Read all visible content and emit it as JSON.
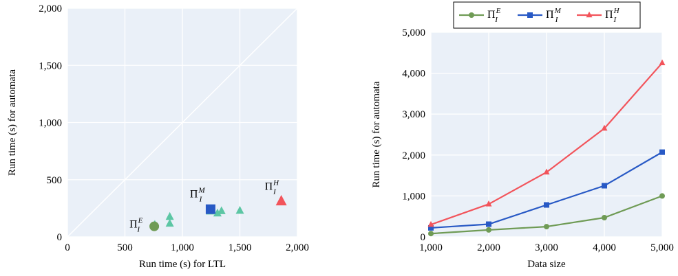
{
  "chart_data": [
    {
      "type": "scatter",
      "xlabel": "Run time (s) for LTL",
      "ylabel": "Run time (s) for automata",
      "xlim": [
        0,
        2000
      ],
      "ylim": [
        0,
        2000
      ],
      "xticks": [
        "0",
        "500",
        "1,000",
        "1,500",
        "2,000"
      ],
      "yticks": [
        "0",
        "500",
        "1,000",
        "1,500",
        "2,000"
      ],
      "grid": true,
      "diagonal": true,
      "annotations": [
        {
          "base": "Π",
          "sub": "I",
          "sup": "E",
          "x": 755,
          "y": 92
        },
        {
          "base": "Π",
          "sub": "I",
          "sup": "M",
          "x": 1245,
          "y": 242
        },
        {
          "base": "Π",
          "sub": "I",
          "sup": "H",
          "x": 1860,
          "y": 310
        }
      ],
      "series": [
        {
          "marker": "triangle",
          "color": "#5cc6a4",
          "points": [
            [
              760,
              105
            ],
            [
              890,
              175
            ],
            [
              890,
              115
            ],
            [
              1240,
              222
            ],
            [
              1305,
              205
            ],
            [
              1340,
              225
            ],
            [
              1500,
              228
            ]
          ]
        },
        {
          "marker": "circle",
          "color": "#6f9b55",
          "points": [
            [
              755,
              92
            ]
          ]
        },
        {
          "marker": "square",
          "color": "#2859c5",
          "points": [
            [
              1245,
              242
            ]
          ]
        },
        {
          "marker": "triangle-large",
          "color": "#f2545b",
          "points": [
            [
              1860,
              310
            ]
          ]
        }
      ]
    },
    {
      "type": "line",
      "xlabel": "Data size",
      "ylabel": "Run time (s) for automata",
      "x": [
        1000,
        2000,
        3000,
        4000,
        5000
      ],
      "xlim": [
        1000,
        5000
      ],
      "ylim": [
        0,
        5000
      ],
      "xticks": [
        "1,000",
        "2,000",
        "3,000",
        "4,000",
        "5,000"
      ],
      "yticks": [
        "0",
        "1,000",
        "2,000",
        "3,000",
        "4,000",
        "5,000"
      ],
      "grid": true,
      "legend_position": "top",
      "series": [
        {
          "name": "Π_I^E",
          "base": "Π",
          "sub": "I",
          "sup": "E",
          "color": "#6f9b55",
          "marker": "circle",
          "values": [
            80,
            170,
            250,
            470,
            1000
          ]
        },
        {
          "name": "Π_I^M",
          "base": "Π",
          "sub": "I",
          "sup": "M",
          "color": "#2859c5",
          "marker": "square",
          "values": [
            220,
            310,
            780,
            1250,
            2070
          ]
        },
        {
          "name": "Π_I^H",
          "base": "Π",
          "sub": "I",
          "sup": "H",
          "color": "#f2545b",
          "marker": "triangle",
          "values": [
            300,
            800,
            1580,
            2650,
            4250
          ]
        }
      ]
    }
  ]
}
